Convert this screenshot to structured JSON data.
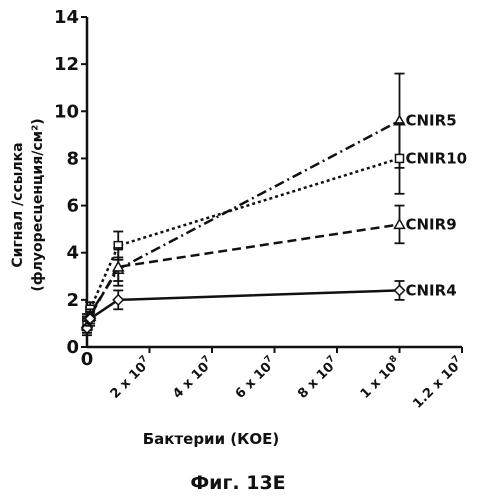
{
  "chart_data": {
    "type": "line",
    "title": "",
    "xlabel": "Бактерии (КОЕ)",
    "ylabel_line1": "Сигнал /ссылка",
    "ylabel_line2": "(флуоресценция/см²)",
    "caption": "Фиг. 13E",
    "xlim": [
      0,
      120000000
    ],
    "ylim": [
      0,
      14
    ],
    "y_ticks": [
      0,
      2,
      4,
      6,
      8,
      10,
      12,
      14
    ],
    "x_ticks": [
      {
        "value": 20000000,
        "base": "2 x 10",
        "exp": "7"
      },
      {
        "value": 40000000,
        "base": "4 x 10",
        "exp": "7"
      },
      {
        "value": 60000000,
        "base": "6 x 10",
        "exp": "7"
      },
      {
        "value": 80000000,
        "base": "8 x 10",
        "exp": "7"
      },
      {
        "value": 100000000,
        "base": "1 x 10",
        "exp": "8"
      },
      {
        "value": 120000000,
        "base": "1.2 x 10",
        "exp": "7"
      }
    ],
    "x_origin_label": "0",
    "y_origin_label": "0",
    "grid": false,
    "legend": "labels at line ends",
    "series": [
      {
        "name": "CNIR5",
        "dash": "dashdot",
        "marker": "triangle",
        "x": [
          0,
          1000000,
          10000000,
          100000000
        ],
        "y": [
          1.0,
          1.4,
          3.3,
          9.6
        ],
        "err": [
          0.3,
          0.3,
          0.5,
          2.0
        ]
      },
      {
        "name": "CNIR10",
        "dash": "dotted",
        "marker": "square",
        "x": [
          0,
          1000000,
          10000000,
          100000000
        ],
        "y": [
          1.1,
          1.6,
          4.3,
          8.0
        ],
        "err": [
          0.3,
          0.3,
          0.6,
          1.5
        ]
      },
      {
        "name": "CNIR9",
        "dash": "dashed",
        "marker": "triangle",
        "x": [
          0,
          1000000,
          10000000,
          100000000
        ],
        "y": [
          0.9,
          1.3,
          3.4,
          5.2
        ],
        "err": [
          0.3,
          0.3,
          0.8,
          0.8
        ]
      },
      {
        "name": "CNIR4",
        "dash": "solid",
        "marker": "diamond",
        "x": [
          0,
          1000000,
          10000000,
          100000000
        ],
        "y": [
          0.8,
          1.2,
          2.0,
          2.4
        ],
        "err": [
          0.3,
          0.3,
          0.4,
          0.4
        ]
      }
    ]
  }
}
